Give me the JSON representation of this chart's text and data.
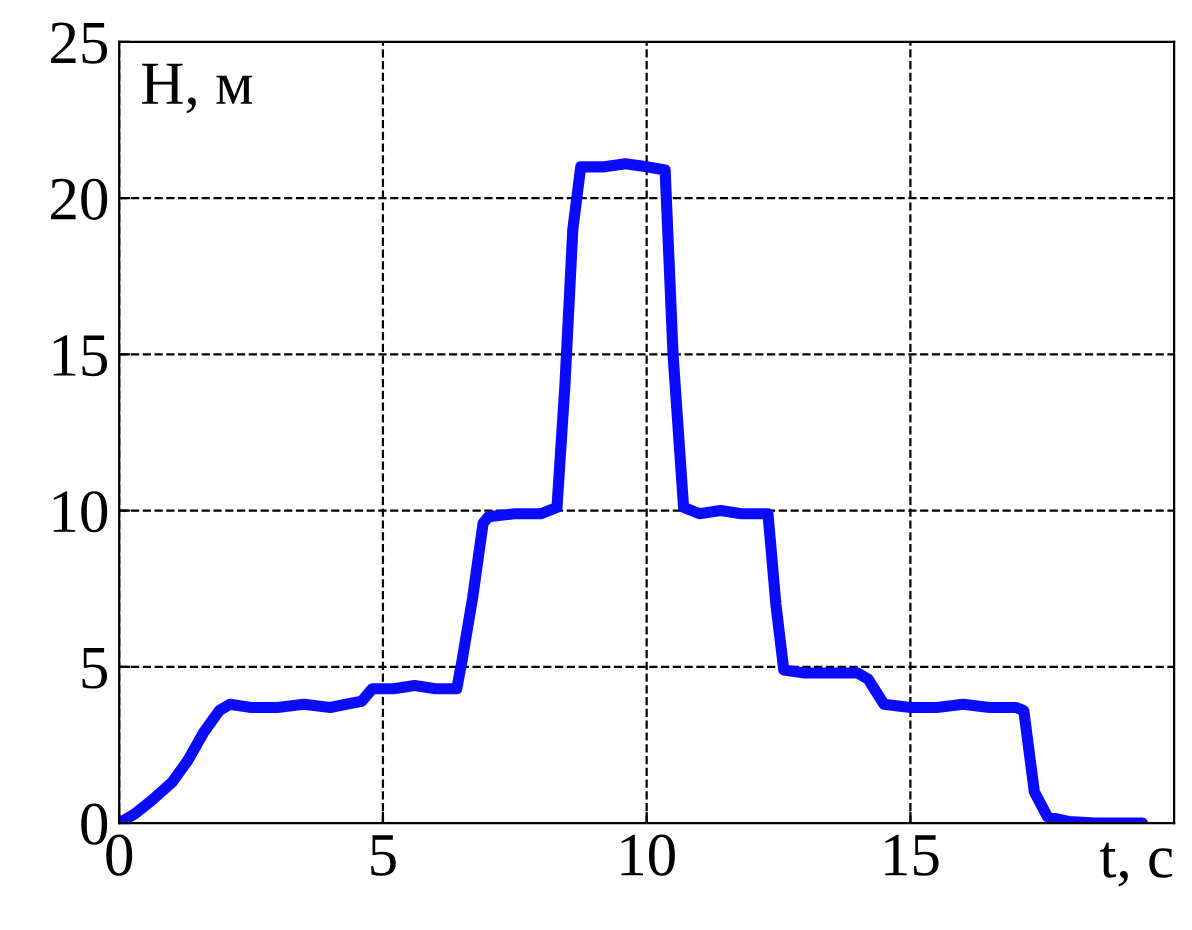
{
  "chart_data": {
    "type": "line",
    "xlabel": "t, c",
    "ylabel": "H, м",
    "series": [
      {
        "color": "#0a0aff",
        "x": [
          0,
          0.3,
          0.6,
          1.0,
          1.3,
          1.6,
          1.9,
          2.1,
          2.5,
          3.0,
          3.5,
          4.0,
          4.3,
          4.6,
          4.8,
          5.2,
          5.6,
          6.0,
          6.4,
          6.5,
          6.7,
          6.9,
          7.0,
          7.5,
          8.0,
          8.3,
          8.45,
          8.6,
          8.75,
          9.2,
          9.6,
          10.0,
          10.35,
          10.5,
          10.7,
          11.0,
          11.4,
          11.8,
          12.3,
          12.45,
          12.6,
          13.0,
          13.5,
          14.0,
          14.2,
          14.5,
          15.0,
          15.5,
          16.0,
          16.5,
          17.0,
          17.15,
          17.35,
          17.6,
          18.0,
          18.5,
          19.0,
          19.4
        ],
        "values": [
          0,
          0.3,
          0.7,
          1.3,
          2.0,
          2.9,
          3.6,
          3.8,
          3.7,
          3.7,
          3.8,
          3.7,
          3.8,
          3.9,
          4.3,
          4.3,
          4.4,
          4.3,
          4.3,
          5.2,
          7.2,
          9.6,
          9.8,
          9.9,
          9.9,
          10.1,
          14.0,
          19.0,
          21.0,
          21.0,
          21.1,
          21.0,
          20.9,
          15.0,
          10.1,
          9.9,
          10.0,
          9.9,
          9.9,
          7.0,
          4.9,
          4.8,
          4.8,
          4.8,
          4.6,
          3.8,
          3.7,
          3.7,
          3.8,
          3.7,
          3.7,
          3.6,
          1.0,
          0.2,
          0.05,
          0,
          0,
          0
        ]
      }
    ],
    "xlim": [
      0,
      20
    ],
    "ylim": [
      0,
      25
    ],
    "xticks": [
      0,
      5,
      10,
      15
    ],
    "yticks": [
      0,
      5,
      10,
      15,
      20,
      25
    ],
    "grid": true,
    "line_style": "solid",
    "marker": "none",
    "legend": false
  }
}
